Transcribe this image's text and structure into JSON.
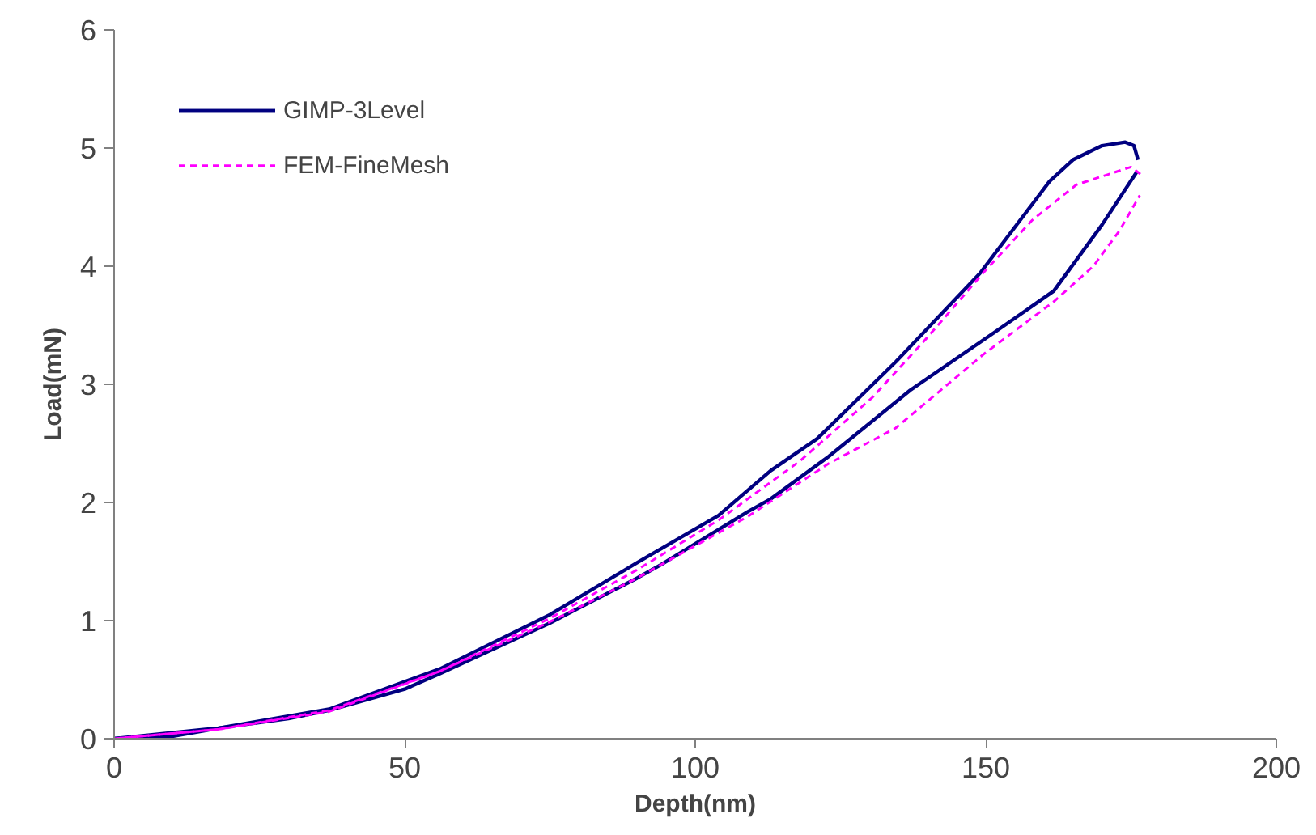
{
  "chart_data": {
    "type": "line",
    "xlabel": "Depth(nm)",
    "ylabel": "Load(mN)",
    "xlim": [
      0,
      200
    ],
    "xticks": [
      0,
      50,
      100,
      150,
      200
    ],
    "ylim": [
      0,
      6
    ],
    "yticks": [
      0,
      1,
      2,
      3,
      4,
      5,
      6
    ],
    "grid": false,
    "legend": "top left",
    "marker": "none",
    "series": [
      {
        "name": "GIMP-3Level",
        "color": "#000080",
        "line_style": "solid",
        "x": [
          0,
          10,
          18,
          30,
          37,
          50,
          56,
          75,
          90,
          94,
          109,
          113,
          123,
          137,
          151.5,
          161.7,
          170,
          174,
          176
        ],
        "values": [
          0,
          0.02,
          0.09,
          0.17,
          0.24,
          0.42,
          0.55,
          0.98,
          1.36,
          1.47,
          1.92,
          2.03,
          2.39,
          2.95,
          3.44,
          3.79,
          4.35,
          4.65,
          4.8
        ]
      },
      {
        "color": "#000080",
        "line_style": "solid",
        "x": [
          176.2,
          175.5,
          174,
          170,
          165,
          161,
          149,
          134.5,
          121,
          113,
          104,
          90,
          75,
          56,
          37,
          18,
          0
        ],
        "values": [
          4.9,
          5.02,
          5.05,
          5.02,
          4.9,
          4.72,
          3.94,
          3.19,
          2.54,
          2.27,
          1.89,
          1.49,
          1.05,
          0.59,
          0.25,
          0.09,
          0
        ]
      },
      {
        "name": "FEM-FineMesh",
        "color": "#ff00ff",
        "line_style": "dashed",
        "x": [
          0,
          18,
          37,
          56,
          75,
          90,
          109,
          123,
          134.5,
          149.5,
          161.7,
          168.5,
          173,
          176.5
        ],
        "values": [
          0,
          0.08,
          0.23,
          0.57,
          0.99,
          1.36,
          1.88,
          2.33,
          2.63,
          3.25,
          3.7,
          4.0,
          4.3,
          4.6
        ]
      },
      {
        "color": "#ff00ff",
        "line_style": "dashed",
        "x": [
          176.6,
          175,
          165.6,
          158,
          149.5,
          140,
          130.5,
          118,
          104,
          90,
          75,
          56,
          37,
          18,
          0
        ],
        "values": [
          4.78,
          4.84,
          4.69,
          4.39,
          3.94,
          3.4,
          2.89,
          2.35,
          1.85,
          1.43,
          1.02,
          0.57,
          0.24,
          0.08,
          0
        ]
      }
    ]
  }
}
